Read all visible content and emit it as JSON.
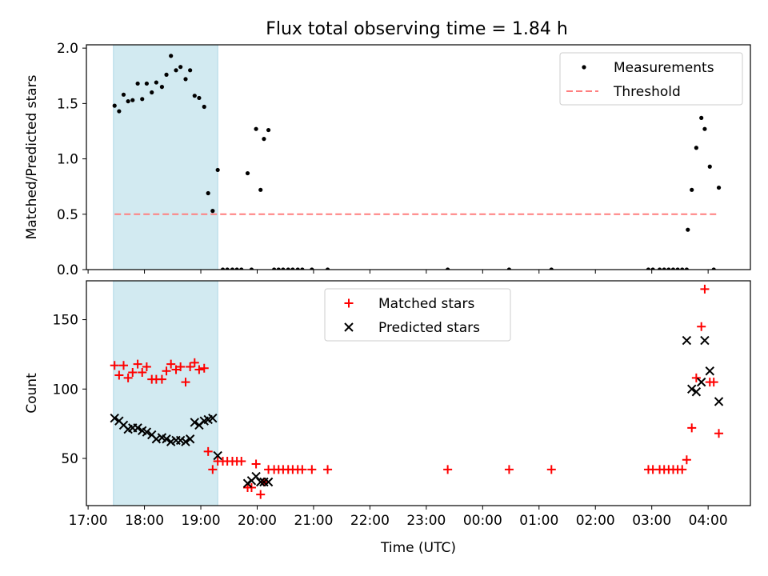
{
  "title": "Flux total observing time = 1.84 h",
  "x_tick_labels": [
    "17:00",
    "18:00",
    "19:00",
    "20:00",
    "21:00",
    "22:00",
    "23:00",
    "00:00",
    "01:00",
    "02:00",
    "03:00",
    "04:00"
  ],
  "chart_data": [
    {
      "type": "scatter",
      "ylabel": "Matched/Predicted stars",
      "xlabel": "",
      "x_units": "hours since 17:00 UTC",
      "xlim": [
        -0.03,
        11.75
      ],
      "ylim": [
        0,
        2.03
      ],
      "y_ticks": [
        0.0,
        0.5,
        1.0,
        1.5,
        2.0
      ],
      "y_tick_labels": [
        "0.0",
        "0.5",
        "1.0",
        "1.5",
        "2.0"
      ],
      "legend_location": "upper right",
      "highlight_span": [
        0.45,
        2.3
      ],
      "highlight_color": "#add8e6",
      "series": [
        {
          "name": "Measurements",
          "kind": "points",
          "color": "#000000",
          "points": [
            [
              0.47,
              1.48
            ],
            [
              0.55,
              1.43
            ],
            [
              0.63,
              1.58
            ],
            [
              0.71,
              1.52
            ],
            [
              0.79,
              1.53
            ],
            [
              0.88,
              1.68
            ],
            [
              0.96,
              1.54
            ],
            [
              1.04,
              1.68
            ],
            [
              1.13,
              1.6
            ],
            [
              1.21,
              1.69
            ],
            [
              1.31,
              1.65
            ],
            [
              1.39,
              1.76
            ],
            [
              1.47,
              1.93
            ],
            [
              1.56,
              1.8
            ],
            [
              1.64,
              1.83
            ],
            [
              1.73,
              1.72
            ],
            [
              1.81,
              1.8
            ],
            [
              1.89,
              1.57
            ],
            [
              1.97,
              1.55
            ],
            [
              2.06,
              1.47
            ],
            [
              2.13,
              0.69
            ],
            [
              2.21,
              0.53
            ],
            [
              2.3,
              0.9
            ],
            [
              2.39,
              0.0
            ],
            [
              2.47,
              0.0
            ],
            [
              2.56,
              0.0
            ],
            [
              2.64,
              0.0
            ],
            [
              2.72,
              0.0
            ],
            [
              2.83,
              0.87
            ],
            [
              2.9,
              0.0
            ],
            [
              2.98,
              1.27
            ],
            [
              3.06,
              0.72
            ],
            [
              3.12,
              1.18
            ],
            [
              3.2,
              1.26
            ],
            [
              3.3,
              0.0
            ],
            [
              3.38,
              0.0
            ],
            [
              3.46,
              0.0
            ],
            [
              3.55,
              0.0
            ],
            [
              3.63,
              0.0
            ],
            [
              3.72,
              0.0
            ],
            [
              3.8,
              0.0
            ],
            [
              3.97,
              0.0
            ],
            [
              4.25,
              0.0
            ],
            [
              6.38,
              0.0
            ],
            [
              7.47,
              0.0
            ],
            [
              8.22,
              0.0
            ],
            [
              9.94,
              0.0
            ],
            [
              10.02,
              0.0
            ],
            [
              10.14,
              0.0
            ],
            [
              10.22,
              0.0
            ],
            [
              10.3,
              0.0
            ],
            [
              10.38,
              0.0
            ],
            [
              10.46,
              0.0
            ],
            [
              10.54,
              0.0
            ],
            [
              10.62,
              0.0
            ],
            [
              10.64,
              0.36
            ],
            [
              10.71,
              0.72
            ],
            [
              10.79,
              1.1
            ],
            [
              10.88,
              1.37
            ],
            [
              10.94,
              1.27
            ],
            [
              11.03,
              0.93
            ],
            [
              11.1,
              0.0
            ],
            [
              11.19,
              0.74
            ]
          ]
        },
        {
          "name": "Threshold",
          "kind": "dashed-line",
          "color": "#ff7f7f",
          "points": [
            [
              0.47,
              0.5
            ],
            [
              11.19,
              0.5
            ]
          ]
        }
      ]
    },
    {
      "type": "scatter",
      "ylabel": "Count",
      "xlabel": "Time (UTC)",
      "x_units": "hours since 17:00 UTC",
      "xlim": [
        -0.03,
        11.75
      ],
      "ylim": [
        16,
        178
      ],
      "y_ticks": [
        50,
        100,
        150
      ],
      "y_tick_labels": [
        "50",
        "100",
        "150"
      ],
      "legend_location": "upper center",
      "highlight_span": [
        0.45,
        2.3
      ],
      "highlight_color": "#add8e6",
      "series": [
        {
          "name": "Matched stars",
          "kind": "plus",
          "color": "#ff0000",
          "points": [
            [
              0.47,
              117
            ],
            [
              0.55,
              110
            ],
            [
              0.63,
              117
            ],
            [
              0.71,
              108
            ],
            [
              0.79,
              112
            ],
            [
              0.88,
              118
            ],
            [
              0.96,
              112
            ],
            [
              1.04,
              116
            ],
            [
              1.13,
              107
            ],
            [
              1.21,
              107
            ],
            [
              1.31,
              107
            ],
            [
              1.39,
              113
            ],
            [
              1.47,
              118
            ],
            [
              1.56,
              114
            ],
            [
              1.64,
              116
            ],
            [
              1.73,
              105
            ],
            [
              1.81,
              116
            ],
            [
              1.89,
              119
            ],
            [
              1.97,
              114
            ],
            [
              2.06,
              115
            ],
            [
              2.13,
              55
            ],
            [
              2.21,
              42
            ],
            [
              2.3,
              48
            ],
            [
              2.39,
              48
            ],
            [
              2.47,
              48
            ],
            [
              2.56,
              48
            ],
            [
              2.64,
              48
            ],
            [
              2.72,
              48
            ],
            [
              2.83,
              29
            ],
            [
              2.9,
              29
            ],
            [
              2.98,
              46
            ],
            [
              3.06,
              24
            ],
            [
              3.12,
              33
            ],
            [
              3.2,
              42
            ],
            [
              3.3,
              42
            ],
            [
              3.38,
              42
            ],
            [
              3.46,
              42
            ],
            [
              3.55,
              42
            ],
            [
              3.63,
              42
            ],
            [
              3.72,
              42
            ],
            [
              3.8,
              42
            ],
            [
              3.97,
              42
            ],
            [
              4.25,
              42
            ],
            [
              6.38,
              42
            ],
            [
              7.47,
              42
            ],
            [
              8.22,
              42
            ],
            [
              9.94,
              42
            ],
            [
              10.02,
              42
            ],
            [
              10.14,
              42
            ],
            [
              10.22,
              42
            ],
            [
              10.3,
              42
            ],
            [
              10.38,
              42
            ],
            [
              10.46,
              42
            ],
            [
              10.54,
              42
            ],
            [
              10.62,
              49
            ],
            [
              10.71,
              72
            ],
            [
              10.79,
              108
            ],
            [
              10.88,
              145
            ],
            [
              10.94,
              172
            ],
            [
              11.03,
              105
            ],
            [
              11.1,
              105
            ],
            [
              11.19,
              68
            ]
          ]
        },
        {
          "name": "Predicted stars",
          "kind": "cross",
          "color": "#000000",
          "points": [
            [
              0.47,
              79
            ],
            [
              0.55,
              77
            ],
            [
              0.63,
              74
            ],
            [
              0.71,
              71
            ],
            [
              0.79,
              72
            ],
            [
              0.88,
              72
            ],
            [
              0.96,
              70
            ],
            [
              1.04,
              69
            ],
            [
              1.13,
              67
            ],
            [
              1.21,
              64
            ],
            [
              1.31,
              65
            ],
            [
              1.39,
              64
            ],
            [
              1.47,
              62
            ],
            [
              1.56,
              63
            ],
            [
              1.64,
              63
            ],
            [
              1.73,
              62
            ],
            [
              1.81,
              64
            ],
            [
              1.89,
              76
            ],
            [
              1.97,
              74
            ],
            [
              2.06,
              77
            ],
            [
              2.13,
              78
            ],
            [
              2.21,
              79
            ],
            [
              2.3,
              52
            ],
            [
              2.83,
              32
            ],
            [
              2.9,
              34
            ],
            [
              2.98,
              37
            ],
            [
              3.06,
              33
            ],
            [
              3.12,
              33
            ],
            [
              3.2,
              33
            ],
            [
              10.62,
              135
            ],
            [
              10.71,
              100
            ],
            [
              10.79,
              98
            ],
            [
              10.88,
              105
            ],
            [
              10.94,
              135
            ],
            [
              11.03,
              113
            ],
            [
              11.19,
              91
            ]
          ]
        }
      ]
    }
  ]
}
